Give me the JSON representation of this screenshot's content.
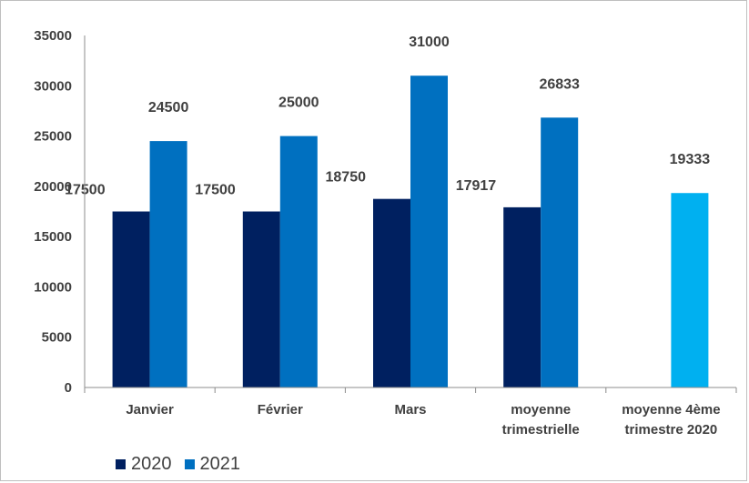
{
  "chart_data": {
    "type": "bar",
    "categories": [
      "Janvier",
      "Février",
      "Mars",
      "moyenne trimestrielle",
      "moyenne 4ème trimestre 2020"
    ],
    "category_lines": [
      [
        "Janvier"
      ],
      [
        "Février"
      ],
      [
        "Mars"
      ],
      [
        "moyenne",
        "trimestrielle"
      ],
      [
        "moyenne 4ème",
        "trimestre 2020"
      ]
    ],
    "series": [
      {
        "name": "2020",
        "color": "#002060",
        "values": [
          17500,
          17500,
          18750,
          17917,
          null
        ]
      },
      {
        "name": "2021",
        "color": "#0070C0",
        "values": [
          24500,
          25000,
          31000,
          26833,
          null
        ]
      }
    ],
    "extra_bar": {
      "category_index": 4,
      "value": 19333,
      "color": "#00B0F0"
    },
    "ylim": [
      0,
      35000
    ],
    "yticks": [
      0,
      5000,
      10000,
      15000,
      20000,
      25000,
      30000,
      35000
    ],
    "grid": false,
    "legend_position": "bottom-left",
    "title": "",
    "xlabel": "",
    "ylabel": ""
  }
}
